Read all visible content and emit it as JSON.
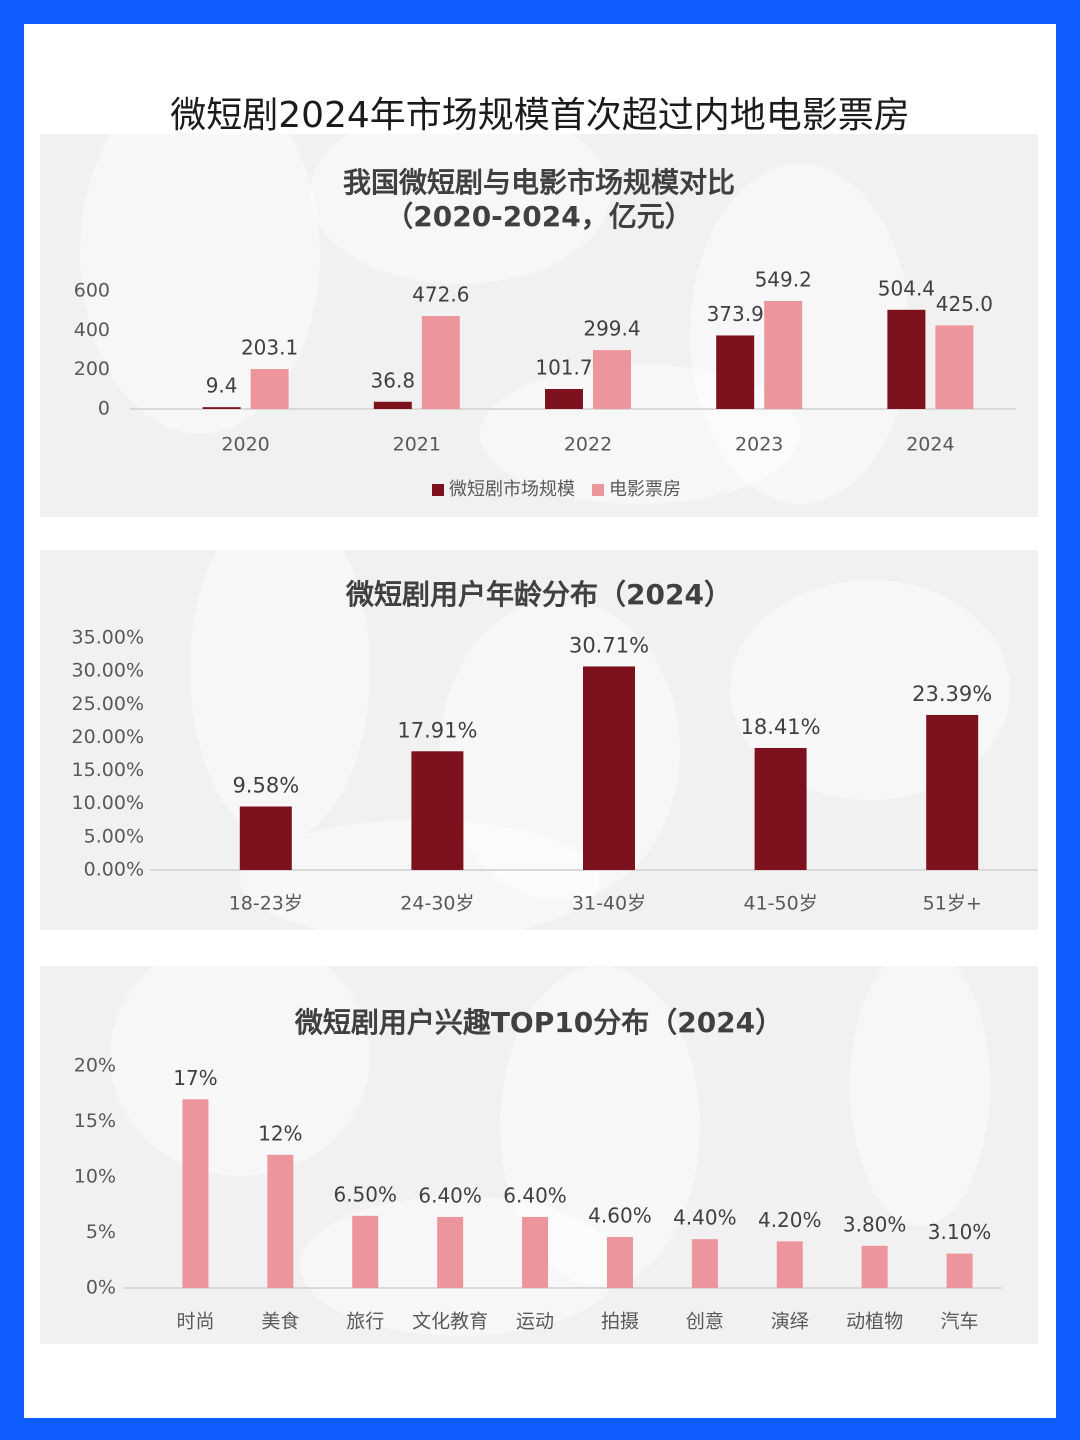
{
  "page": {
    "title": "微短剧2024年市场规模首次超过内地电影票房"
  },
  "colors": {
    "dark_red": "#7d111e",
    "pink": "#ec959c",
    "axis_text": "#595959",
    "title_text": "#404040",
    "label_text": "#404040",
    "grid": "#d9d9d9"
  },
  "chart_data": [
    {
      "type": "bar",
      "title": "我国微短剧与电影市场规模对比\n（2020-2024，亿元）",
      "title_lines": [
        "我国微短剧与电影市场规模对比",
        "（2020-2024，亿元）"
      ],
      "categories": [
        "2020",
        "2021",
        "2022",
        "2023",
        "2024"
      ],
      "series": [
        {
          "name": "微短剧市场规模",
          "values": [
            9.4,
            36.8,
            101.7,
            373.9,
            504.4
          ],
          "labels": [
            "9.4",
            "36.8",
            "101.7",
            "373.9",
            "504.4"
          ],
          "color": "#7d111e"
        },
        {
          "name": "电影票房",
          "values": [
            203.1,
            472.6,
            299.4,
            549.2,
            425.0
          ],
          "labels": [
            "203.1",
            "472.6",
            "299.4",
            "549.2",
            "425.0"
          ],
          "color": "#ec959c"
        }
      ],
      "ylim": [
        0,
        600
      ],
      "yticks": [
        0,
        200,
        400,
        600
      ],
      "ytick_labels": [
        "0",
        "200",
        "400",
        "600"
      ],
      "legend": "bottom",
      "grid": false
    },
    {
      "type": "bar",
      "title": "微短剧用户年龄分布（2024）",
      "title_lines": [
        "微短剧用户年龄分布（2024）"
      ],
      "categories": [
        "18-23岁",
        "24-30岁",
        "31-40岁",
        "41-50岁",
        "51岁+"
      ],
      "series": [
        {
          "values": [
            9.58,
            17.91,
            30.71,
            18.41,
            23.39
          ],
          "labels": [
            "9.58%",
            "17.91%",
            "30.71%",
            "18.41%",
            "23.39%"
          ],
          "color": "#7d111e"
        }
      ],
      "ylim": [
        0,
        35
      ],
      "yticks": [
        0,
        5,
        10,
        15,
        20,
        25,
        30,
        35
      ],
      "ytick_labels": [
        "0.00%",
        "5.00%",
        "10.00%",
        "15.00%",
        "20.00%",
        "25.00%",
        "30.00%",
        "35.00%"
      ],
      "grid": false
    },
    {
      "type": "bar",
      "title": "微短剧用户兴趣TOP10分布（2024）",
      "title_lines": [
        "微短剧用户兴趣TOP10分布（2024）"
      ],
      "categories": [
        "时尚",
        "美食",
        "旅行",
        "文化教育",
        "运动",
        "拍摄",
        "创意",
        "演绎",
        "动植物",
        "汽车"
      ],
      "series": [
        {
          "values": [
            17,
            12,
            6.5,
            6.4,
            6.4,
            4.6,
            4.4,
            4.2,
            3.8,
            3.1
          ],
          "labels": [
            "17%",
            "12%",
            "6.50%",
            "6.40%",
            "6.40%",
            "4.60%",
            "4.40%",
            "4.20%",
            "3.80%",
            "3.10%"
          ],
          "color": "#ec959c"
        }
      ],
      "ylim": [
        0,
        20
      ],
      "yticks": [
        0,
        5,
        10,
        15,
        20
      ],
      "ytick_labels": [
        "0%",
        "5%",
        "10%",
        "15%",
        "20%"
      ],
      "grid": false
    }
  ]
}
